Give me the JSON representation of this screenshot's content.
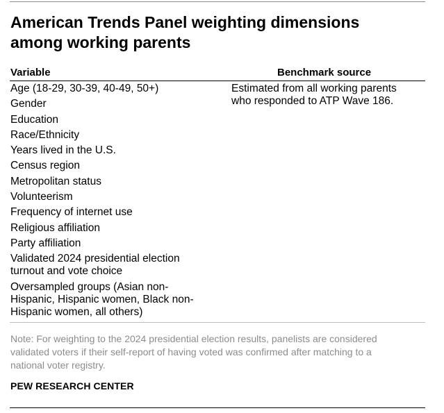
{
  "title_lines": [
    "American Trends Panel weighting dimensions",
    "among working parents"
  ],
  "columns": {
    "variable": "Variable",
    "benchmark": "Benchmark source"
  },
  "variables": [
    [
      "Age (18-29, 30-39, 40-49, 50+)"
    ],
    [
      "Gender"
    ],
    [
      "Education"
    ],
    [
      "Race/Ethnicity"
    ],
    [
      "Years lived in the U.S."
    ],
    [
      "Census region"
    ],
    [
      "Metropolitan status"
    ],
    [
      "Volunteerism"
    ],
    [
      "Frequency of internet use"
    ],
    [
      "Religious affiliation"
    ],
    [
      "Party affiliation"
    ],
    [
      "Validated 2024 presidential election",
      "turnout and vote choice"
    ],
    [
      "Oversampled groups (Asian non-",
      "Hispanic, Hispanic women, Black non-",
      "Hispanic women, all others)"
    ]
  ],
  "benchmark_lines": [
    "Estimated from all working parents",
    "who responded to ATP Wave 186."
  ],
  "note_lines": [
    "Note: For weighting to the 2024 presidential election results, panelists are considered",
    "validated voters if their self-report of having voted was confirmed after matching to a",
    "national voter registry."
  ],
  "source": "PEW RESEARCH CENTER"
}
